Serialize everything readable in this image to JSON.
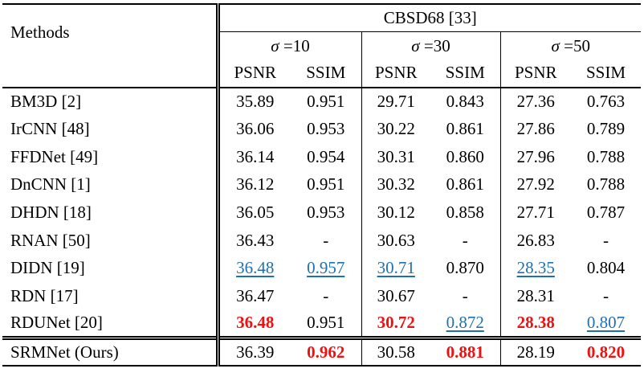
{
  "header": {
    "methods_label": "Methods",
    "dataset": "CBSD68 [33]",
    "sigma_symbol": "σ",
    "sigma_groups": [
      "=10",
      "=30",
      "=50"
    ],
    "metric_labels": [
      "PSNR",
      "SSIM",
      "PSNR",
      "SSIM",
      "PSNR",
      "SSIM"
    ]
  },
  "rows": [
    {
      "method": "BM3D [2]",
      "values": [
        "35.89",
        "0.951",
        "29.71",
        "0.843",
        "27.36",
        "0.763"
      ]
    },
    {
      "method": "IrCNN [48]",
      "values": [
        "36.06",
        "0.953",
        "30.22",
        "0.861",
        "27.86",
        "0.789"
      ]
    },
    {
      "method": "FFDNet [49]",
      "values": [
        "36.14",
        "0.954",
        "30.31",
        "0.860",
        "27.96",
        "0.788"
      ]
    },
    {
      "method": "DnCNN [1]",
      "values": [
        "36.12",
        "0.951",
        "30.32",
        "0.861",
        "27.92",
        "0.788"
      ]
    },
    {
      "method": "DHDN [18]",
      "values": [
        "36.05",
        "0.953",
        "30.12",
        "0.858",
        "27.71",
        "0.787"
      ]
    },
    {
      "method": "RNAN [50]",
      "values": [
        "36.43",
        "-",
        "30.63",
        "-",
        "26.83",
        "-"
      ]
    },
    {
      "method": "DIDN [19]",
      "values": [
        "36.48",
        "0.957",
        "30.71",
        "0.870",
        "28.35",
        "0.804"
      ]
    },
    {
      "method": "RDN [17]",
      "values": [
        "36.47",
        "-",
        "30.67",
        "-",
        "28.31",
        "-"
      ]
    },
    {
      "method": "RDUNet [20]",
      "values": [
        "36.48",
        "0.951",
        "30.72",
        "0.872",
        "28.38",
        "0.807"
      ]
    }
  ],
  "ours": {
    "method": "SRMNet (Ours)",
    "values": [
      "36.39",
      "0.962",
      "30.58",
      "0.881",
      "28.19",
      "0.820"
    ]
  },
  "highlight_colors": {
    "best": "#ee1111",
    "second_best": "#1f6fb2"
  },
  "highlights": {
    "best": [
      [
        8,
        0
      ],
      [
        8,
        2
      ],
      [
        8,
        4
      ],
      [
        9,
        1
      ],
      [
        9,
        3
      ],
      [
        9,
        5
      ]
    ],
    "second_best": [
      [
        6,
        0
      ],
      [
        6,
        1
      ],
      [
        6,
        2
      ],
      [
        6,
        4
      ],
      [
        8,
        3
      ],
      [
        8,
        5
      ]
    ]
  }
}
